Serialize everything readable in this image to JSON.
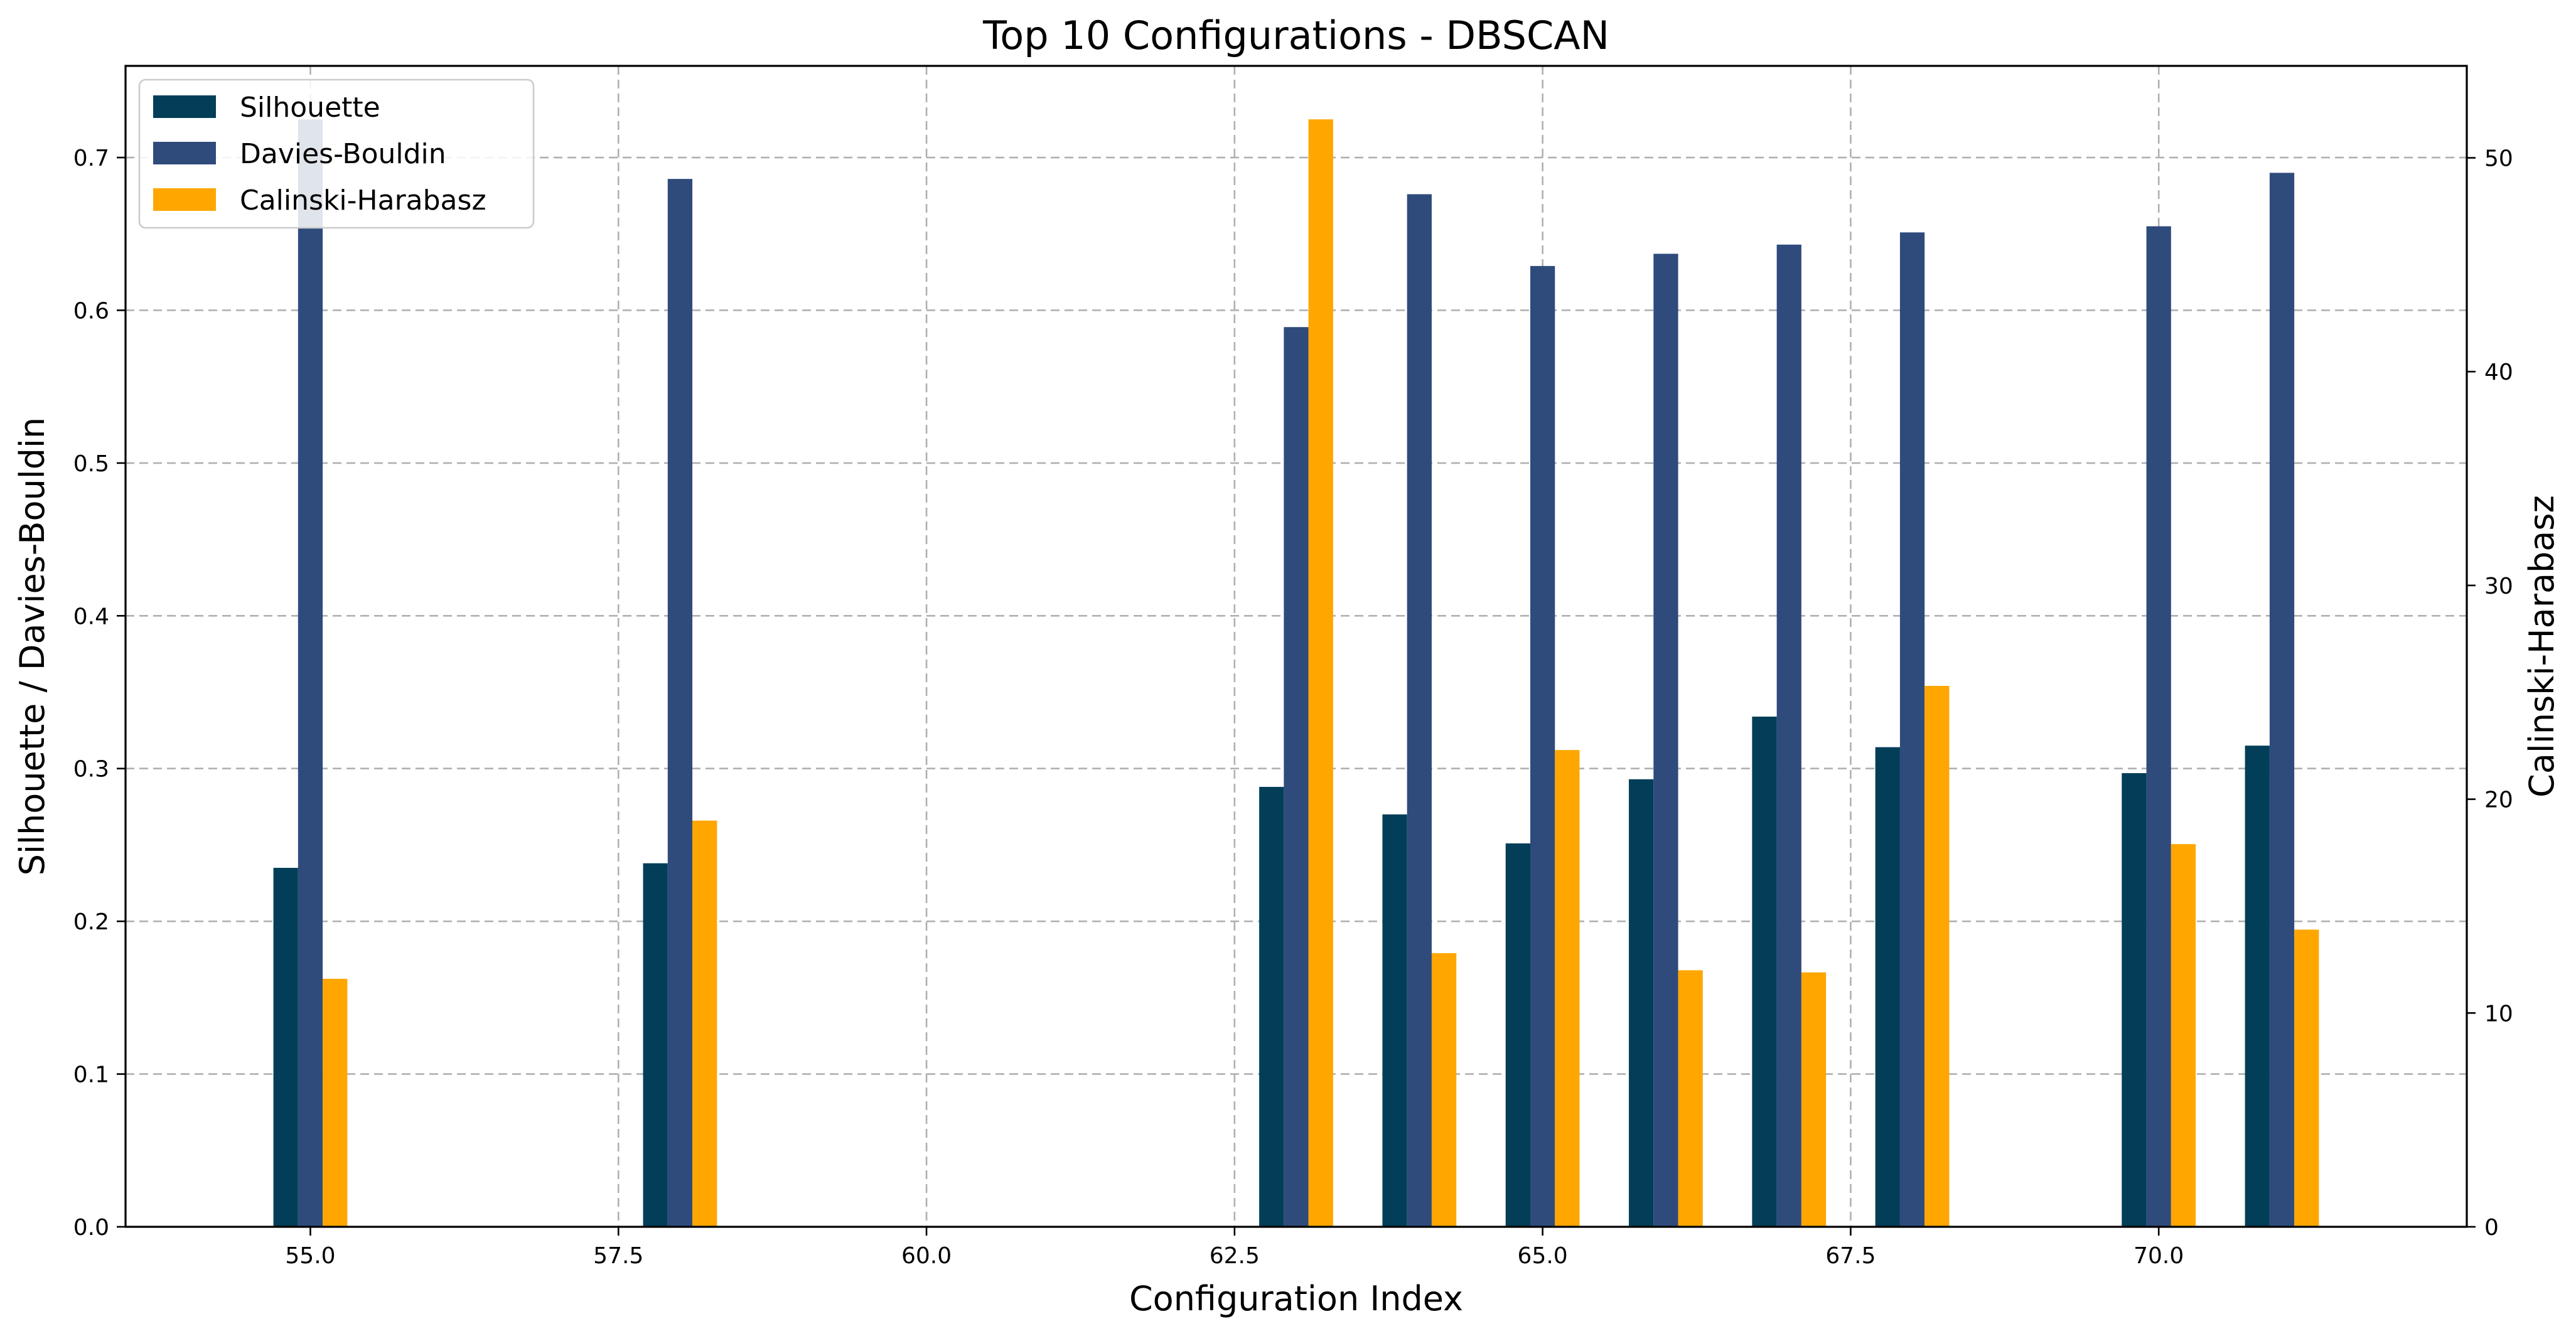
{
  "chart_data": {
    "type": "bar",
    "title": "Top 10 Configurations - DBSCAN",
    "xlabel": "Configuration Index",
    "ylabel": "Silhouette / Davies-Bouldin",
    "y2label": "Calinski-Harabasz",
    "x": [
      55,
      58,
      63,
      64,
      65,
      66,
      67,
      68,
      70,
      71
    ],
    "xlim": [
      53.5,
      72.5
    ],
    "ylim": [
      0,
      0.76
    ],
    "y2lim": [
      0,
      54.3
    ],
    "x_ticks": [
      "55.0",
      "57.5",
      "60.0",
      "62.5",
      "65.0",
      "67.5",
      "70.0"
    ],
    "y_ticks": [
      "0.0",
      "0.1",
      "0.2",
      "0.3",
      "0.4",
      "0.5",
      "0.6",
      "0.7"
    ],
    "y2_ticks": [
      "0",
      "10",
      "20",
      "30",
      "40",
      "50"
    ],
    "grid": true,
    "legend_position": "top-left",
    "series": [
      {
        "name": "Silhouette",
        "axis": "left",
        "color": "#023e58",
        "values": [
          0.235,
          0.238,
          0.288,
          0.27,
          0.251,
          0.293,
          0.334,
          0.314,
          0.297,
          0.315
        ]
      },
      {
        "name": "Davies-Bouldin",
        "axis": "left",
        "color": "#2f4b7c",
        "values": [
          0.725,
          0.686,
          0.589,
          0.676,
          0.629,
          0.637,
          0.643,
          0.651,
          0.655,
          0.69
        ]
      },
      {
        "name": "Calinski-Harabasz",
        "axis": "right",
        "color": "#ffa600",
        "values": [
          11.6,
          19.0,
          51.8,
          12.8,
          22.3,
          12.0,
          11.9,
          25.3,
          17.9,
          13.9
        ]
      }
    ]
  }
}
